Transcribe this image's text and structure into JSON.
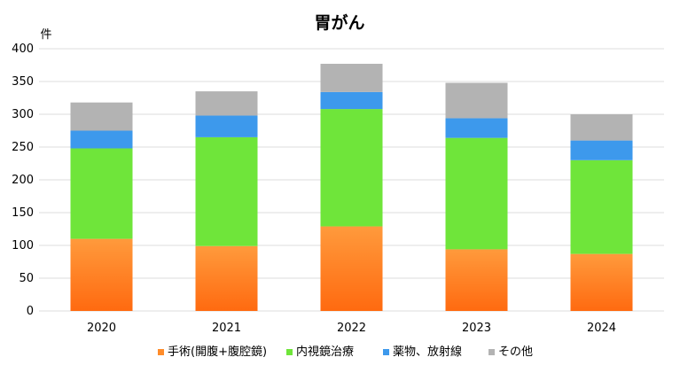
{
  "chart_data": {
    "type": "bar",
    "stacked": true,
    "title": "胃がん",
    "ylabel": "件",
    "xlabel": "",
    "categories": [
      "2020",
      "2021",
      "2022",
      "2023",
      "2024"
    ],
    "ylim": [
      0,
      400
    ],
    "yticks": [
      0,
      50,
      100,
      150,
      200,
      250,
      300,
      350,
      400
    ],
    "grid": true,
    "legend_position": "bottom",
    "series": [
      {
        "name": "手術(開腹+腹腔鏡)",
        "color": "#ff8c2a",
        "values": [
          110,
          99,
          129,
          94,
          87
        ]
      },
      {
        "name": "内視鏡治療",
        "color": "#6fe53a",
        "values": [
          138,
          166,
          179,
          170,
          143
        ]
      },
      {
        "name": "薬物、放射線",
        "color": "#3d99ec",
        "values": [
          27,
          33,
          26,
          30,
          30
        ]
      },
      {
        "name": "その他",
        "color": "#b3b3b3",
        "values": [
          43,
          37,
          43,
          54,
          40
        ]
      }
    ]
  }
}
